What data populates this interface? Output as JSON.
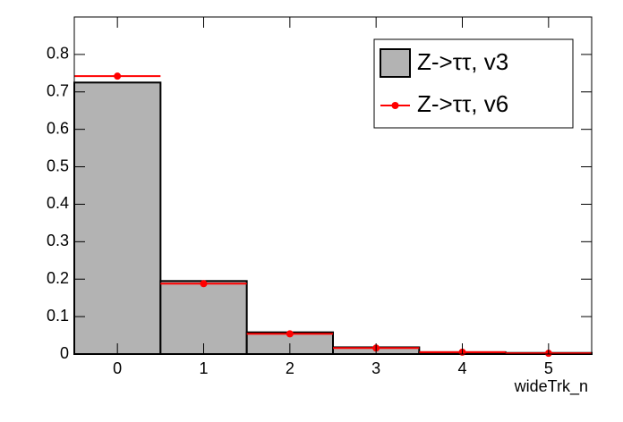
{
  "chart_data": {
    "type": "histogram",
    "x_label": "wideTrk_n",
    "bins": [
      -0.5,
      0.5,
      1.5,
      2.5,
      3.5,
      4.5,
      5.5
    ],
    "series": [
      {
        "name": "Z->ττ, v3",
        "color": "#b3b3b3",
        "values": [
          0.725,
          0.195,
          0.058,
          0.018,
          0.005,
          0.003
        ]
      },
      {
        "name": "Z->ττ, v6",
        "color": "#ff0000",
        "values": [
          0.742,
          0.188,
          0.054,
          0.016,
          0.005,
          0.002
        ]
      }
    ],
    "xlim": [
      -0.5,
      5.5
    ],
    "xticks": [
      0,
      1,
      2,
      3,
      4,
      5
    ],
    "ylim": [
      0,
      0.9
    ],
    "yticks": [
      0,
      0.1,
      0.2,
      0.3,
      0.4,
      0.5,
      0.6,
      0.7,
      0.8
    ],
    "legend": "top-right"
  }
}
